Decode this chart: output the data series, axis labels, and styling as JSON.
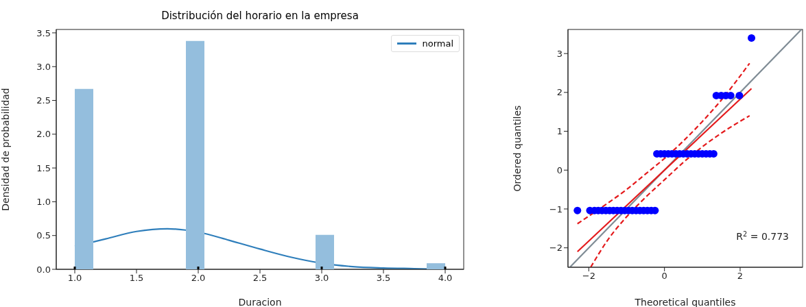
{
  "chart_data": [
    {
      "type": "histogram",
      "title": "Distribución del horario en la empresa",
      "xlabel": "Duracion",
      "ylabel": "Densidad de probabilidad",
      "bins": [
        1.0,
        1.15,
        1.3,
        1.45,
        1.6,
        1.75,
        1.9,
        2.05,
        2.2,
        2.35,
        2.5,
        2.65,
        2.8,
        2.95,
        3.1,
        3.25,
        3.4,
        3.55,
        3.7,
        3.85,
        4.0
      ],
      "values": [
        2.67,
        0,
        0,
        0,
        0,
        0,
        3.38,
        0,
        0,
        0,
        0,
        0,
        0,
        0.51,
        0,
        0,
        0,
        0,
        0,
        0.09
      ],
      "color": "#94bedd",
      "xlim": [
        0.85,
        4.15
      ],
      "xticks": [
        {
          "value": 1,
          "label": "1.0"
        },
        1.5,
        {
          "value": 2,
          "label": "2.0"
        },
        2.5,
        {
          "value": 3,
          "label": "3.0"
        },
        3.5,
        {
          "value": 4,
          "label": "4.0"
        }
      ],
      "ylim": [
        0,
        3.55
      ],
      "yticks": [
        {
          "value": 0,
          "label": "0.0"
        },
        0.5,
        {
          "value": 1,
          "label": "1.0"
        },
        1.5,
        {
          "value": 2,
          "label": "2.0"
        },
        2.5,
        {
          "value": 3,
          "label": "3.0"
        },
        3.5
      ],
      "legend": "top right",
      "series": [
        {
          "type": "line",
          "name": "normal",
          "color": "#2e7ebb",
          "marker": "none",
          "x": [
            1.0,
            1.25,
            1.5,
            1.75,
            2.0,
            2.25,
            2.5,
            2.75,
            3.0,
            3.25,
            3.5,
            3.75,
            4.0
          ],
          "values": [
            0.34,
            0.45,
            0.56,
            0.6,
            0.55,
            0.43,
            0.3,
            0.18,
            0.09,
            0.04,
            0.02,
            0.01,
            0.0
          ]
        },
        {
          "type": "scatter",
          "color": "#000000",
          "x": [
            1,
            2,
            3,
            4
          ],
          "values": [
            0,
            0,
            0,
            0
          ]
        }
      ]
    },
    {
      "type": "scatter",
      "xlabel": "Theoretical quantiles",
      "ylabel": "Ordered quantiles",
      "xlim": [
        -2.55,
        3.65
      ],
      "xticks": [
        {
          "value": -2,
          "label": "−2"
        },
        0,
        2
      ],
      "ylim": [
        -2.5,
        3.62
      ],
      "yticks": [
        {
          "value": -2,
          "label": "−2"
        },
        {
          "value": -1,
          "label": "−1"
        },
        0,
        1,
        2,
        3
      ],
      "annotations": [
        "R$^{2}$ = 0.773"
      ],
      "series": [
        {
          "type": "line",
          "color": "#7f8c95",
          "marker": "none",
          "x": [
            -2.5,
            3.62
          ],
          "values": [
            -2.5,
            3.62
          ]
        },
        {
          "type": "line",
          "color": "#e41a1c",
          "marker": "none",
          "line_style": "dashed",
          "x": [
            -2.3,
            -1.5,
            -1.0,
            -0.5,
            0.0,
            0.5,
            1.0,
            1.5,
            2.25
          ],
          "values": [
            -1.38,
            -0.85,
            -0.5,
            -0.1,
            0.3,
            0.75,
            1.25,
            1.8,
            2.75
          ]
        },
        {
          "type": "line",
          "color": "#e41a1c",
          "marker": "none",
          "line_style": "dashed",
          "x": [
            -1.95,
            -1.5,
            -1.0,
            -0.5,
            0.0,
            0.5,
            1.0,
            1.5,
            2.25
          ],
          "values": [
            -2.5,
            -1.8,
            -1.2,
            -0.7,
            -0.25,
            0.2,
            0.6,
            0.95,
            1.4
          ]
        },
        {
          "type": "scatter",
          "color": "#0000ff",
          "marker": "circle",
          "x": [
            -2.3,
            -1.97,
            -1.85,
            -1.75,
            -1.65,
            -1.55,
            -1.45,
            -1.35,
            -1.25,
            -1.15,
            -1.05,
            -0.95,
            -0.85,
            -0.75,
            -0.65,
            -0.55,
            -0.45,
            -0.35,
            -0.25,
            -0.2,
            -0.1,
            0.0,
            0.1,
            0.2,
            0.3,
            0.4,
            0.5,
            0.6,
            0.7,
            0.8,
            0.9,
            1.0,
            1.1,
            1.2,
            1.3,
            1.37,
            1.5,
            1.62,
            1.75,
            1.98,
            2.3
          ],
          "values": [
            -1.04,
            -1.04,
            -1.04,
            -1.04,
            -1.04,
            -1.04,
            -1.04,
            -1.04,
            -1.04,
            -1.04,
            -1.04,
            -1.04,
            -1.04,
            -1.04,
            -1.04,
            -1.04,
            -1.04,
            -1.04,
            -1.04,
            0.42,
            0.42,
            0.42,
            0.42,
            0.42,
            0.42,
            0.42,
            0.42,
            0.42,
            0.42,
            0.42,
            0.42,
            0.42,
            0.42,
            0.42,
            0.42,
            1.92,
            1.92,
            1.92,
            1.92,
            1.92,
            3.4
          ]
        },
        {
          "type": "line",
          "color": "#e41a1c",
          "marker": "none",
          "x": [
            -2.3,
            2.3
          ],
          "values": [
            -2.1,
            2.1
          ]
        }
      ]
    }
  ]
}
